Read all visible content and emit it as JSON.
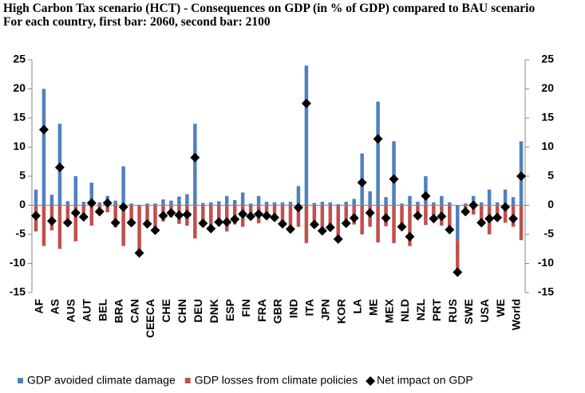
{
  "chart_data": {
    "type": "bar",
    "title": "High Carbon Tax scenario (HCT) - Consequences on GDP (in % of GDP) compared to BAU scenario",
    "subtitle": "For each country, first bar: 2060, second bar: 2100",
    "categories": [
      "AF",
      null,
      "AS",
      null,
      "AUS",
      null,
      "AUT",
      null,
      "BEL",
      null,
      "BRA",
      null,
      "CAN",
      null,
      "CEECA",
      null,
      "CHE",
      null,
      "CHN",
      null,
      "DEU",
      null,
      "DNK",
      null,
      "ESP",
      null,
      "FIN",
      null,
      "FRA",
      null,
      "GBR",
      null,
      "IND",
      null,
      "ITA",
      null,
      "JPN",
      null,
      "KOR",
      null,
      "LA",
      null,
      "ME",
      null,
      "MEX",
      null,
      "NLD",
      null,
      "NZL",
      null,
      "PRT",
      null,
      "RUS",
      null,
      "SWE",
      null,
      "USA",
      null,
      "WE",
      null,
      "World",
      null
    ],
    "series": [
      {
        "name": "GDP avoided climate damage",
        "color": "#4f81bd",
        "values": [
          2.7,
          20,
          1.8,
          14,
          0.7,
          5,
          0.6,
          3.9,
          0.5,
          1.6,
          0.8,
          6.7,
          0.3,
          0.1,
          0.3,
          0.3,
          1,
          0.8,
          1.5,
          1.9,
          14,
          0.4,
          0.5,
          0.7,
          1.6,
          0.9,
          2.2,
          0.3,
          1.6,
          0.6,
          0.5,
          0.5,
          0.6,
          3.3,
          24,
          0.4,
          0.6,
          0.5,
          0.2,
          0.6,
          1.1,
          8.9,
          2.4,
          17.8,
          1.4,
          11,
          0.3,
          1.6,
          0.6,
          5,
          0.5,
          1.6,
          0.5,
          -6,
          0.3,
          1.6,
          0.5,
          2.7,
          0.5,
          2.7,
          1.4,
          11
        ]
      },
      {
        "name": "GDP losses from climate policies",
        "color": "#c0504d",
        "values": [
          -4.5,
          -7,
          -4.3,
          -7.5,
          -3.3,
          -6.2,
          -2.5,
          -3.5,
          -1.6,
          -1.2,
          -3.8,
          -7,
          -3.3,
          -8.3,
          -3.5,
          -4.6,
          -2.8,
          -2.1,
          -3.2,
          -3.5,
          -5.7,
          -3.5,
          -4.5,
          -3.6,
          -4.5,
          -3.3,
          -3.7,
          -2.2,
          -3.1,
          -2.4,
          -2.6,
          -3.7,
          -4.7,
          -3.7,
          -6.5,
          -3.7,
          -5,
          -4.3,
          -6,
          -3.7,
          -3.3,
          -5,
          -3.7,
          -6.4,
          -3.6,
          -6.5,
          -4,
          -7,
          -2.4,
          -3.4,
          -2.8,
          -3.5,
          -4.7,
          -5.5,
          -1.4,
          -1.6,
          -3.5,
          -5,
          -2.6,
          -3,
          -3.7,
          -6
        ]
      },
      {
        "name": "Net impact on GDP",
        "color": "#000000",
        "values": [
          -1.8,
          13,
          -2.7,
          6.5,
          -3,
          -1.3,
          -2,
          0.4,
          -1.1,
          0.4,
          -3,
          -0.3,
          -3,
          -8.2,
          -3.2,
          -4.3,
          -1.8,
          -1.3,
          -1.7,
          -1.6,
          8.2,
          -3.1,
          -4,
          -2.9,
          -2.9,
          -2.4,
          -1.5,
          -1.9,
          -1.5,
          -1.8,
          -2.1,
          -3.2,
          -4.1,
          -0.4,
          17.5,
          -3.3,
          -4.4,
          -3.8,
          -5.8,
          -3.1,
          -2.2,
          3.9,
          -1.3,
          11.4,
          -2.2,
          4.5,
          -3.7,
          -5.4,
          -1.8,
          1.6,
          -2.3,
          -1.9,
          -4.2,
          -11.5,
          -1.1,
          0,
          -3,
          -2.3,
          -2.1,
          -0.3,
          -2.3,
          5
        ]
      }
    ],
    "ylim": [
      -15,
      25
    ],
    "yticks": [
      -15,
      -10,
      -5,
      0,
      5,
      10,
      15,
      20,
      25
    ],
    "y2lim": [
      -15,
      25
    ],
    "y2ticks": [
      -15,
      -10,
      -5,
      0,
      5,
      10,
      15,
      20,
      25
    ],
    "legend": "bottom"
  }
}
